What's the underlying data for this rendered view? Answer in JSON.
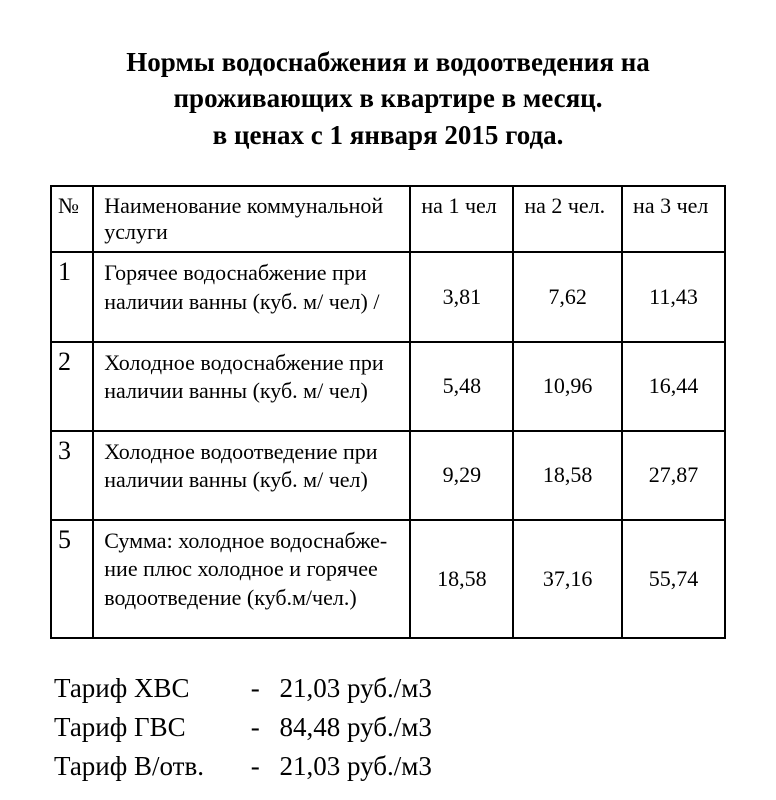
{
  "title_line1": "Нормы водоснабжения и водоотведения на",
  "title_line2": "проживающих в квартире в месяц.",
  "title_line3": "в ценах с 1 января 2015 года.",
  "table": {
    "columns": [
      "№",
      "Наименование коммунальной услуги",
      "на 1 чел",
      "на 2 чел.",
      "на 3 чел"
    ],
    "rows": [
      {
        "num": "1",
        "name": "Горячее водоснабжение при наличии ванны  (куб. м/ чел) /",
        "v1": "3,81",
        "v2": "7,62",
        "v3": "11,43"
      },
      {
        "num": "2",
        "name": "Холодное водоснабжение при наличии ванны    (куб. м/ чел)",
        "v1": "5,48",
        "v2": "10,96",
        "v3": "16,44"
      },
      {
        "num": "3",
        "name": "Холодное водоотведение при наличии ванны    (куб. м/ чел)",
        "v1": "9,29",
        "v2": "18,58",
        "v3": "27,87"
      },
      {
        "num": "5",
        "name": "Сумма: холодное водоснабже-ние плюс холодное и горячее водоотведение    (куб.м/чел.)",
        "v1": "18,58",
        "v2": "37,16",
        "v3": "55,74"
      }
    ]
  },
  "tariffs": [
    {
      "label": "Тариф ХВС",
      "value": "21,03 руб./м3"
    },
    {
      "label": "Тариф ГВС",
      "value": "84,48 руб./м3"
    },
    {
      "label": "Тариф В/отв.",
      "value": "21,03 руб./м3"
    }
  ]
}
